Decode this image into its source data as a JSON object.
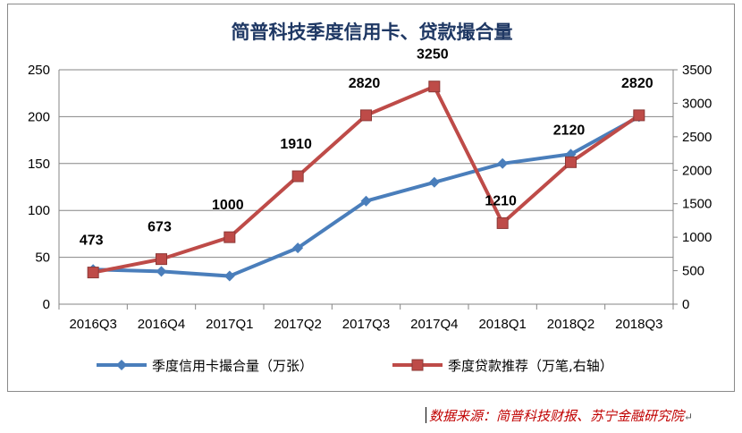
{
  "chart_data": {
    "type": "line",
    "title": "简普科技季度信用卡、贷款撮合量",
    "categories": [
      "2016Q3",
      "2016Q4",
      "2017Q1",
      "2017Q2",
      "2017Q3",
      "2017Q4",
      "2018Q1",
      "2018Q2",
      "2018Q3"
    ],
    "series": [
      {
        "name": "季度信用卡撮合量（万张）",
        "axis": "left",
        "color": "#4a7ebb",
        "marker": "diamond",
        "values": [
          37,
          35,
          30,
          60,
          110,
          130,
          150,
          160,
          200
        ]
      },
      {
        "name": "季度贷款推荐（万笔,右轴）",
        "axis": "right",
        "color": "#be4b48",
        "marker": "square",
        "values": [
          473,
          673,
          1000,
          1910,
          2820,
          3250,
          1210,
          2120,
          2820
        ],
        "data_labels": [
          "473",
          "673",
          "1000",
          "1910",
          "2820",
          "3250",
          "1210",
          "2120",
          "2820"
        ]
      }
    ],
    "y_left": {
      "lim": [
        0,
        250
      ],
      "ticks": [
        "0",
        "50",
        "100",
        "150",
        "200",
        "250"
      ]
    },
    "y_right": {
      "lim": [
        0,
        3500
      ],
      "ticks": [
        "0",
        "500",
        "1000",
        "1500",
        "2000",
        "2500",
        "3000",
        "3500"
      ]
    },
    "grid": true,
    "legend_position": "bottom"
  },
  "source": {
    "text": "数据来源：简普科技财报、苏宁金融研究院",
    "mark": "↵"
  }
}
